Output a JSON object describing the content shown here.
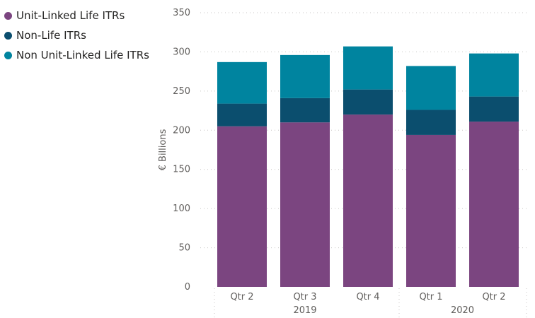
{
  "chart_data": {
    "type": "bar",
    "stacked": true,
    "title": "",
    "xlabel": "",
    "ylabel": "€ Billions",
    "ylim": [
      0,
      350
    ],
    "yticks": [
      0,
      50,
      100,
      150,
      200,
      250,
      300,
      350
    ],
    "grid": true,
    "legend_position": "top-left",
    "categories": [
      "Qtr 2",
      "Qtr 3",
      "Qtr 4",
      "Qtr 1",
      "Qtr 2"
    ],
    "year_groups": [
      {
        "label": "2019",
        "count": 3
      },
      {
        "label": "2020",
        "count": 2
      }
    ],
    "series": [
      {
        "name": "Unit-Linked Life ITRs",
        "color": "#7b4580",
        "values": [
          205,
          210,
          220,
          194,
          211
        ]
      },
      {
        "name": "Non-Life ITRs",
        "color": "#0b4e6e",
        "values": [
          29,
          31,
          32,
          32,
          32
        ]
      },
      {
        "name": "Non Unit-Linked Life ITRs",
        "color": "#00849f",
        "values": [
          53,
          55,
          55,
          56,
          55
        ]
      }
    ]
  }
}
